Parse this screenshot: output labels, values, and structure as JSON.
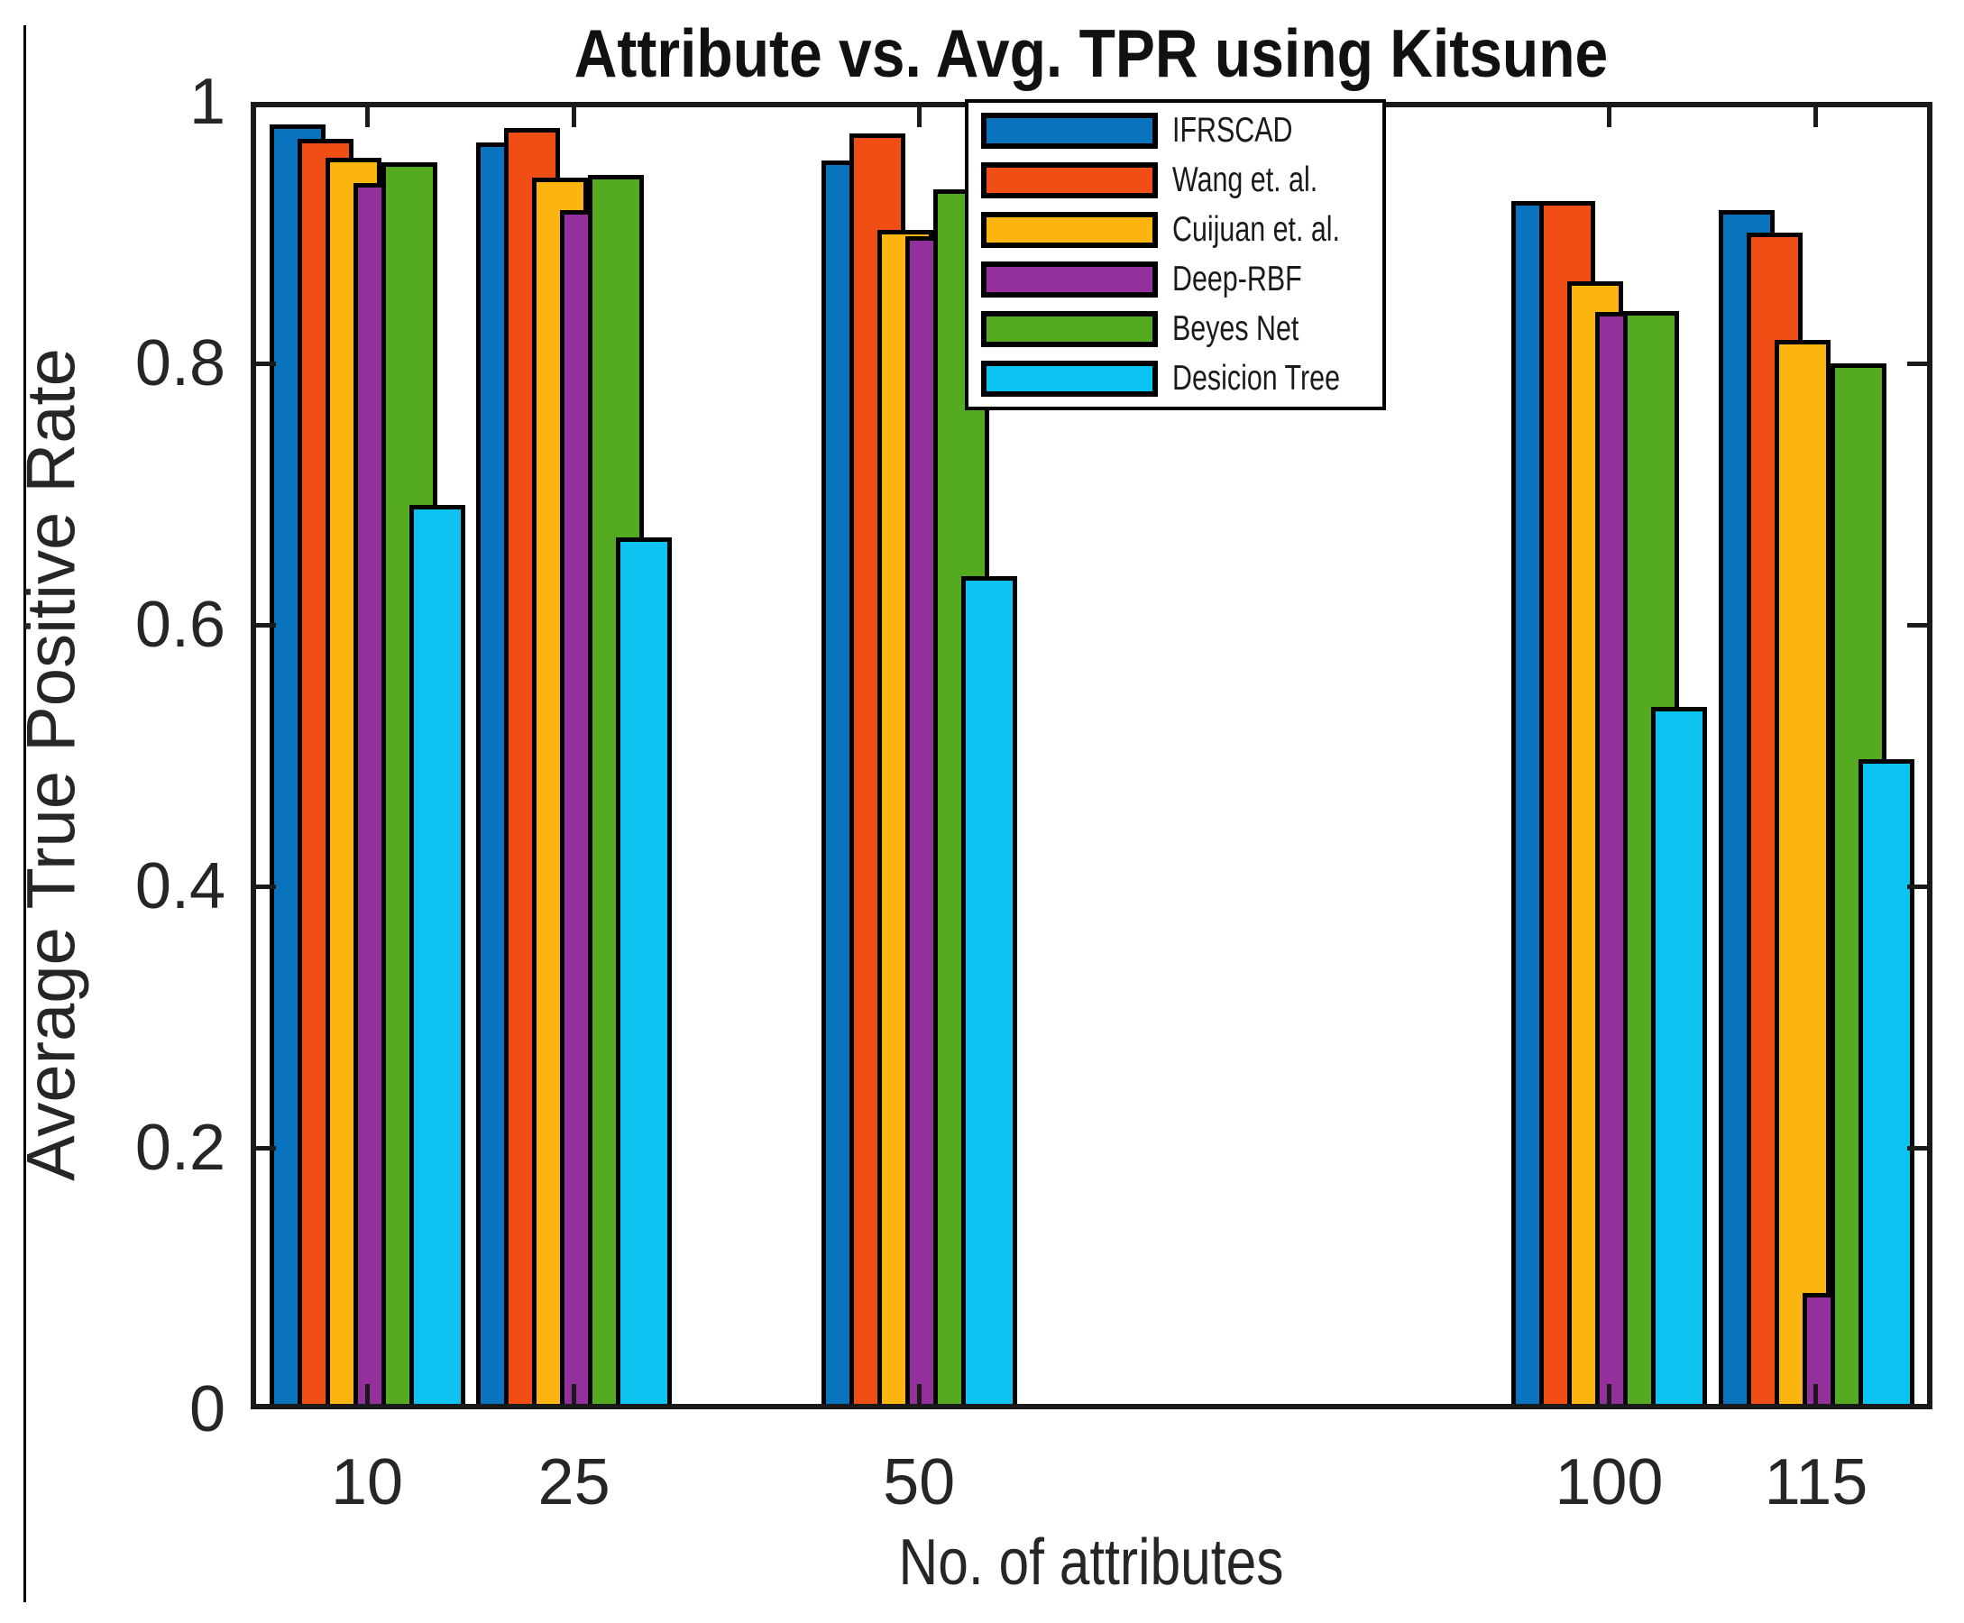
{
  "chart_data": {
    "type": "bar",
    "title": "Attribute vs. Avg. TPR using Kitsune",
    "xlabel": "No. of attributes",
    "ylabel": "Average True Positive Rate",
    "categories": [
      10,
      25,
      50,
      100,
      115
    ],
    "xtick_labels": [
      "10",
      "25",
      "50",
      "100",
      "115"
    ],
    "series": [
      {
        "name": "IFRSCAD",
        "color": "#0a73be",
        "values": [
          0.983,
          0.969,
          0.955,
          0.924,
          0.917
        ]
      },
      {
        "name": "Wang et. al.",
        "color": "#f04e15",
        "values": [
          0.972,
          0.98,
          0.976,
          0.924,
          0.9
        ]
      },
      {
        "name": "Cuijuan et. al.",
        "color": "#fcb40f",
        "values": [
          0.957,
          0.942,
          0.902,
          0.863,
          0.818
        ]
      },
      {
        "name": "Deep-RBF",
        "color": "#93309c",
        "values": [
          0.938,
          0.917,
          0.897,
          0.839,
          0.089
        ]
      },
      {
        "name": "Beyes Net",
        "color": "#54ab1f",
        "values": [
          0.954,
          0.944,
          0.933,
          0.84,
          0.8
        ]
      },
      {
        "name": "Desicion Tree",
        "color": "#0bc2f0",
        "values": [
          0.692,
          0.667,
          0.637,
          0.537,
          0.497
        ]
      }
    ],
    "ylim": [
      0,
      1
    ],
    "xlim": [
      1.57,
      123.43
    ],
    "yticks": [
      0,
      0.2,
      0.4,
      0.6,
      0.8,
      1
    ],
    "ytick_labels": [
      "0",
      "0.2",
      "0.4",
      "0.6",
      "0.8",
      "1"
    ],
    "grid": false,
    "legend_position": "upper-center-right",
    "bars_overlap": true
  }
}
